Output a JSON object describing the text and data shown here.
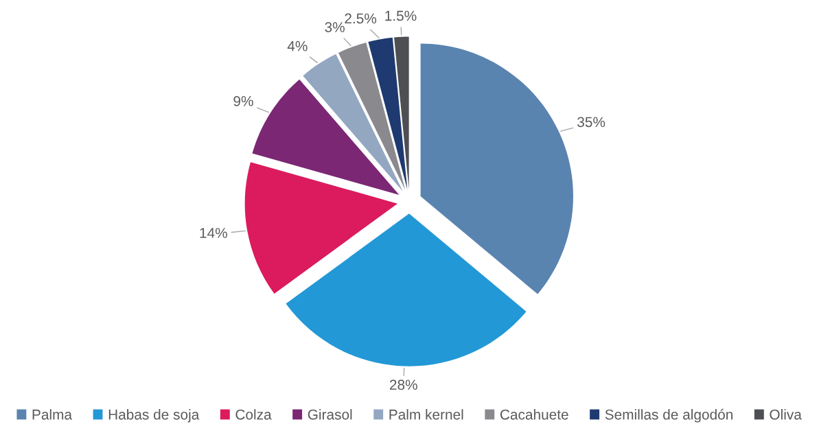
{
  "chart_data": {
    "type": "pie",
    "categories": [
      "Palma",
      "Habas de soja",
      "Colza",
      "Girasol",
      "Palm kernel",
      "Cacahuete",
      "Semillas de algodón",
      "Oliva"
    ],
    "values": [
      35,
      28,
      14,
      9,
      4,
      3,
      2.5,
      1.5
    ],
    "value_labels": [
      "35%",
      "28%",
      "14%",
      "9%",
      "4%",
      "3%",
      "2.5%",
      "1.5%"
    ],
    "colors": [
      "#5a84b0",
      "#2398d6",
      "#dc1a5e",
      "#7b2774",
      "#93a7c1",
      "#8a8a8e",
      "#1f3a70",
      "#4d4f53"
    ],
    "legend": "bottom"
  }
}
